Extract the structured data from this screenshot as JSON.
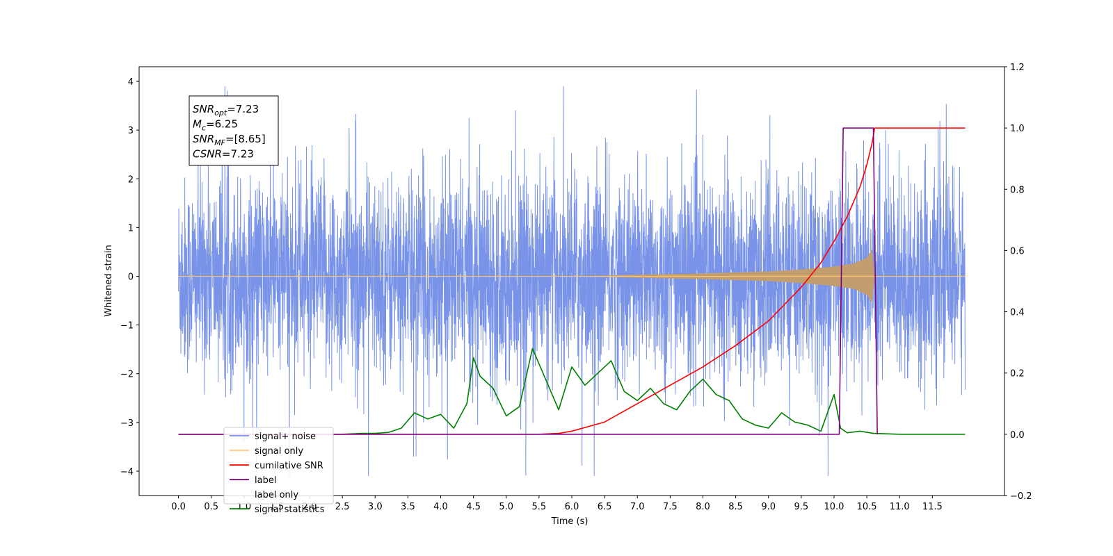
{
  "chart_data": {
    "type": "line",
    "title": "",
    "xlabel": "Time (s)",
    "ylabel": "Whitened strain",
    "xlim": [
      -0.6,
      12.6
    ],
    "ylim": [
      -4.5,
      4.3
    ],
    "y2lim": [
      -0.2,
      1.2
    ],
    "x_ticks": [
      "0.0",
      "0.5",
      "1.0",
      "1.5",
      "2.0",
      "2.5",
      "3.0",
      "3.5",
      "4.0",
      "4.5",
      "5.0",
      "5.5",
      "6.0",
      "6.5",
      "7.0",
      "7.5",
      "8.0",
      "8.5",
      "9.0",
      "9.5",
      "10.0",
      "10.5",
      "11.0",
      "11.5"
    ],
    "y_ticks": [
      -4,
      -3,
      -2,
      -1,
      0,
      1,
      2,
      3,
      4
    ],
    "y2_ticks": [
      "−0.2",
      "0.0",
      "0.2",
      "0.4",
      "0.6",
      "0.8",
      "1.0",
      "1.2"
    ],
    "legend_position": "lower-left",
    "grid": false,
    "annotation": [
      {
        "base": "SNR",
        "sub": "opt",
        "rest": "=7.23"
      },
      {
        "base": "M",
        "sub": "c",
        "rest": "=6.25"
      },
      {
        "base": "SNR",
        "sub": "MF",
        "rest": "=[8.65]"
      },
      {
        "base": "CSNR",
        "sub": "",
        "rest": "=7.23"
      }
    ],
    "series": [
      {
        "name": "signal+ noise",
        "axis": "left",
        "color": "#7893e8",
        "description_values": {
          "x_range": [
            0.0,
            12.0
          ],
          "typical_envelope": [
            -2.2,
            2.2
          ],
          "max": 3.9,
          "min": -4.1
        }
      },
      {
        "name": "signal only",
        "axis": "left",
        "color": "#ffc870",
        "fill_color": "#c29e6f",
        "envelope": {
          "x": [
            0.0,
            6.0,
            7.0,
            8.0,
            9.0,
            9.5,
            10.0,
            10.3,
            10.5,
            10.58,
            10.62,
            12.0
          ],
          "amp": [
            0.0,
            0.0,
            0.03,
            0.06,
            0.1,
            0.14,
            0.2,
            0.26,
            0.38,
            0.55,
            0.0,
            0.0
          ]
        }
      },
      {
        "name": "cumilative SNR",
        "axis": "right",
        "color": "#ff0000",
        "x": [
          0.0,
          5.5,
          5.8,
          6.0,
          6.5,
          7.0,
          7.5,
          8.0,
          8.5,
          9.0,
          9.5,
          9.8,
          10.0,
          10.2,
          10.4,
          10.5,
          10.58,
          10.62,
          12.0
        ],
        "y": [
          0.0,
          0.0,
          0.003,
          0.01,
          0.04,
          0.1,
          0.16,
          0.22,
          0.29,
          0.37,
          0.48,
          0.56,
          0.63,
          0.71,
          0.81,
          0.88,
          0.95,
          1.0,
          1.0
        ]
      },
      {
        "name": "label",
        "axis": "right",
        "color": "#800080",
        "x": [
          0.0,
          10.08,
          10.14,
          10.6,
          10.66
        ],
        "y": [
          0.0,
          0.0,
          1.0,
          1.0,
          0.0
        ]
      },
      {
        "name": "label only",
        "axis": "right",
        "color": "#ffffff",
        "hidden": true
      },
      {
        "name": "signal statistics",
        "axis": "right",
        "color": "#008000",
        "x": [
          0.0,
          2.5,
          2.8,
          3.0,
          3.2,
          3.4,
          3.6,
          3.8,
          4.0,
          4.2,
          4.4,
          4.5,
          4.6,
          4.8,
          5.0,
          5.2,
          5.4,
          5.6,
          5.8,
          6.0,
          6.2,
          6.4,
          6.6,
          6.8,
          7.0,
          7.2,
          7.4,
          7.6,
          7.8,
          8.0,
          8.2,
          8.4,
          8.6,
          8.8,
          9.0,
          9.2,
          9.4,
          9.6,
          9.8,
          10.0,
          10.1,
          10.2,
          10.4,
          10.6,
          11.0,
          12.0
        ],
        "y": [
          0.0,
          0.0,
          0.003,
          0.003,
          0.006,
          0.02,
          0.07,
          0.05,
          0.065,
          0.02,
          0.1,
          0.25,
          0.19,
          0.15,
          0.06,
          0.09,
          0.28,
          0.18,
          0.08,
          0.22,
          0.16,
          0.2,
          0.24,
          0.14,
          0.11,
          0.15,
          0.1,
          0.08,
          0.14,
          0.18,
          0.13,
          0.11,
          0.05,
          0.03,
          0.02,
          0.07,
          0.04,
          0.03,
          0.01,
          0.13,
          0.02,
          0.005,
          0.01,
          0.003,
          0.0,
          0.0
        ]
      }
    ]
  }
}
